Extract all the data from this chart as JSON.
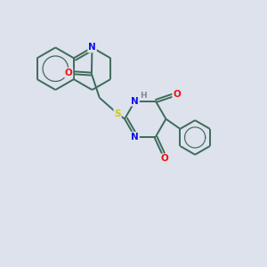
{
  "background_color": "#dde2ec",
  "bond_color": "#3d6b5a",
  "bond_width": 1.4,
  "atom_colors": {
    "N": "#1010ee",
    "O": "#ee1010",
    "S": "#cccc00",
    "H": "#888888",
    "C": "#000000"
  },
  "figsize": [
    3.0,
    3.0
  ],
  "dpi": 100
}
